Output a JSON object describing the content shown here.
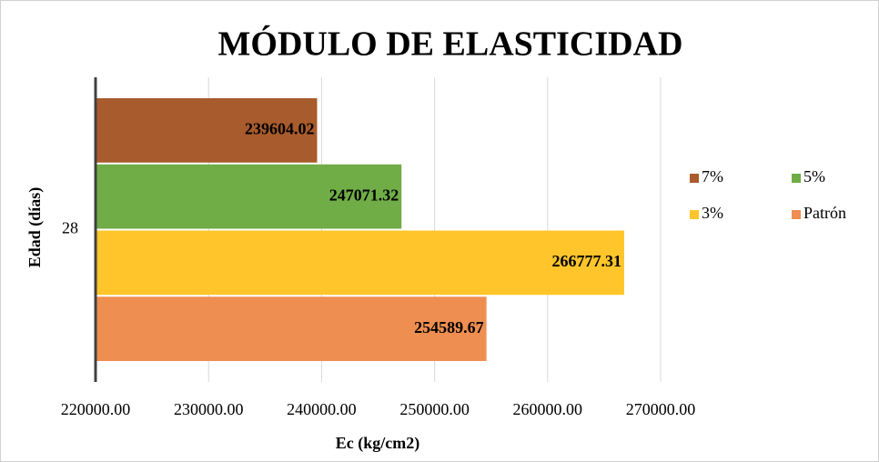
{
  "chart_data": {
    "type": "hbar",
    "title": "MÓDULO DE ELASTICIDAD",
    "x_label": "Ec (kg/cm2)",
    "y_label": "Edad (días)",
    "categories": [
      "28"
    ],
    "series": [
      {
        "name": "7%",
        "color": "#a85b2c",
        "values": [
          239604.02
        ]
      },
      {
        "name": "5%",
        "color": "#70ad47",
        "values": [
          247071.32
        ]
      },
      {
        "name": "3%",
        "color": "#ffc52b",
        "values": [
          266777.31
        ]
      },
      {
        "name": "Patrón",
        "color": "#ee8e50",
        "values": [
          254589.67
        ]
      }
    ],
    "xlim": [
      220000,
      270000
    ],
    "xticks": [
      {
        "value": 220000,
        "label": "220000.00"
      },
      {
        "value": 230000,
        "label": "230000.00"
      },
      {
        "value": 240000,
        "label": "240000.00"
      },
      {
        "value": 250000,
        "label": "250000.00"
      },
      {
        "value": 260000,
        "label": "260000.00"
      },
      {
        "value": 270000,
        "label": "270000.00"
      }
    ],
    "grid": true,
    "legend": "right",
    "data_labels": true
  }
}
